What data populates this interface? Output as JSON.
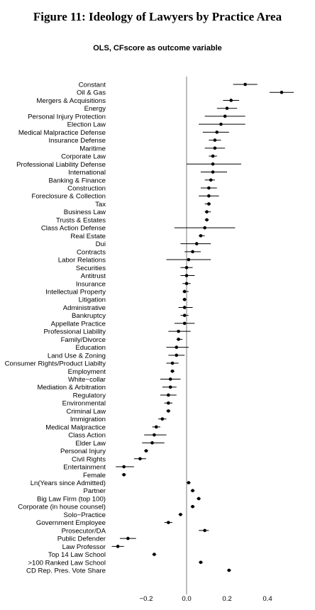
{
  "title": "Figure 11: Ideology of Lawyers by Practice Area",
  "subtitle": "OLS, CFscore as outcome variable",
  "chart_data": {
    "type": "scatter",
    "variant": "coefficient-plot",
    "title": "Figure 11: Ideology of Lawyers by Practice Area",
    "subtitle": "OLS, CFscore as outcome variable",
    "xlim": [
      -0.33,
      0.47
    ],
    "xticks": [
      -0.2,
      0.0,
      0.2,
      0.4
    ],
    "xtick_labels": [
      "−0.2",
      "0.0",
      "0.2",
      "0.4"
    ],
    "reference_line_x": 0,
    "grid": false,
    "terms": [
      {
        "label": "Constant",
        "estimate": 0.29,
        "lo": 0.23,
        "hi": 0.35
      },
      {
        "label": "Oil & Gas",
        "estimate": 0.47,
        "lo": 0.41,
        "hi": 0.53
      },
      {
        "label": "Mergers & Acquisitions",
        "estimate": 0.22,
        "lo": 0.18,
        "hi": 0.26
      },
      {
        "label": "Energy",
        "estimate": 0.2,
        "lo": 0.15,
        "hi": 0.25
      },
      {
        "label": "Personal Injury Protection",
        "estimate": 0.19,
        "lo": 0.09,
        "hi": 0.29
      },
      {
        "label": "Election Law",
        "estimate": 0.17,
        "lo": 0.06,
        "hi": 0.29
      },
      {
        "label": "Medical Malpractice Defense",
        "estimate": 0.15,
        "lo": 0.08,
        "hi": 0.21
      },
      {
        "label": "Insurance Defense",
        "estimate": 0.14,
        "lo": 0.11,
        "hi": 0.17
      },
      {
        "label": "Maritime",
        "estimate": 0.14,
        "lo": 0.09,
        "hi": 0.19
      },
      {
        "label": "Corporate Law",
        "estimate": 0.13,
        "lo": 0.11,
        "hi": 0.15
      },
      {
        "label": "Professional Liability Defense",
        "estimate": 0.13,
        "lo": 0.0,
        "hi": 0.27
      },
      {
        "label": "International",
        "estimate": 0.13,
        "lo": 0.07,
        "hi": 0.2
      },
      {
        "label": "Banking & Finance",
        "estimate": 0.12,
        "lo": 0.09,
        "hi": 0.14
      },
      {
        "label": "Construction",
        "estimate": 0.11,
        "lo": 0.07,
        "hi": 0.15
      },
      {
        "label": "Foreclosure & Collection",
        "estimate": 0.11,
        "lo": 0.06,
        "hi": 0.16
      },
      {
        "label": "Tax",
        "estimate": 0.11,
        "lo": 0.09,
        "hi": 0.12
      },
      {
        "label": "Business Law",
        "estimate": 0.1,
        "lo": 0.09,
        "hi": 0.12
      },
      {
        "label": "Trusts & Estates",
        "estimate": 0.1,
        "lo": 0.09,
        "hi": 0.11
      },
      {
        "label": "Class Action Defense",
        "estimate": 0.09,
        "lo": -0.06,
        "hi": 0.24
      },
      {
        "label": "Real Estate",
        "estimate": 0.07,
        "lo": 0.06,
        "hi": 0.09
      },
      {
        "label": "Dui",
        "estimate": 0.05,
        "lo": -0.03,
        "hi": 0.12
      },
      {
        "label": "Contracts",
        "estimate": 0.03,
        "lo": -0.01,
        "hi": 0.07
      },
      {
        "label": "Labor Relations",
        "estimate": 0.01,
        "lo": -0.1,
        "hi": 0.12
      },
      {
        "label": "Securities",
        "estimate": 0.0,
        "lo": -0.03,
        "hi": 0.03
      },
      {
        "label": "Antitrust",
        "estimate": 0.0,
        "lo": -0.03,
        "hi": 0.04
      },
      {
        "label": "Insurance",
        "estimate": 0.0,
        "lo": -0.02,
        "hi": 0.02
      },
      {
        "label": "Intellectual Property",
        "estimate": -0.01,
        "lo": -0.02,
        "hi": 0.01
      },
      {
        "label": "Litigation",
        "estimate": -0.01,
        "lo": -0.02,
        "hi": 0.0
      },
      {
        "label": "Administrative",
        "estimate": -0.01,
        "lo": -0.04,
        "hi": 0.03
      },
      {
        "label": "Bankruptcy",
        "estimate": -0.01,
        "lo": -0.03,
        "hi": 0.01
      },
      {
        "label": "Appellate Practice",
        "estimate": -0.01,
        "lo": -0.06,
        "hi": 0.04
      },
      {
        "label": "Professional Liability",
        "estimate": -0.04,
        "lo": -0.09,
        "hi": 0.02
      },
      {
        "label": "Family/Divorce",
        "estimate": -0.04,
        "lo": -0.05,
        "hi": -0.02
      },
      {
        "label": "Education",
        "estimate": -0.05,
        "lo": -0.1,
        "hi": 0.01
      },
      {
        "label": "Land Use & Zoning",
        "estimate": -0.05,
        "lo": -0.09,
        "hi": -0.01
      },
      {
        "label": "Consumer Rights/Product Liabilty",
        "estimate": -0.07,
        "lo": -0.1,
        "hi": -0.04
      },
      {
        "label": "Employment",
        "estimate": -0.07,
        "lo": -0.08,
        "hi": -0.06
      },
      {
        "label": "White−collar",
        "estimate": -0.08,
        "lo": -0.13,
        "hi": -0.03
      },
      {
        "label": "Mediation & Arbitration",
        "estimate": -0.08,
        "lo": -0.12,
        "hi": -0.05
      },
      {
        "label": "Regulatory",
        "estimate": -0.09,
        "lo": -0.13,
        "hi": -0.05
      },
      {
        "label": "Environmental",
        "estimate": -0.09,
        "lo": -0.11,
        "hi": -0.07
      },
      {
        "label": "Criminal Law",
        "estimate": -0.09,
        "lo": -0.1,
        "hi": -0.08
      },
      {
        "label": "Immigration",
        "estimate": -0.12,
        "lo": -0.14,
        "hi": -0.1
      },
      {
        "label": "Medical Malpractice",
        "estimate": -0.15,
        "lo": -0.17,
        "hi": -0.13
      },
      {
        "label": "Class Action",
        "estimate": -0.16,
        "lo": -0.21,
        "hi": -0.1
      },
      {
        "label": "Elder Law",
        "estimate": -0.17,
        "lo": -0.22,
        "hi": -0.11
      },
      {
        "label": "Personal Injury",
        "estimate": -0.2,
        "lo": -0.21,
        "hi": -0.19
      },
      {
        "label": "Civil Rights",
        "estimate": -0.23,
        "lo": -0.26,
        "hi": -0.2
      },
      {
        "label": "Entertainment",
        "estimate": -0.31,
        "lo": -0.35,
        "hi": -0.26
      },
      {
        "label": "Female",
        "estimate": -0.31,
        "lo": -0.32,
        "hi": -0.3
      },
      {
        "label": "Ln(Years since Admitted)",
        "estimate": 0.01,
        "lo": 0.0,
        "hi": 0.02
      },
      {
        "label": "Partner",
        "estimate": 0.03,
        "lo": 0.02,
        "hi": 0.04
      },
      {
        "label": "Big Law Firm (top 100)",
        "estimate": 0.06,
        "lo": 0.05,
        "hi": 0.07
      },
      {
        "label": "Corporate (in house counsel)",
        "estimate": 0.03,
        "lo": 0.02,
        "hi": 0.04
      },
      {
        "label": "Solo−Practice",
        "estimate": -0.03,
        "lo": -0.04,
        "hi": -0.02
      },
      {
        "label": "Government Employee",
        "estimate": -0.09,
        "lo": -0.11,
        "hi": -0.07
      },
      {
        "label": "Prosecutor/DA",
        "estimate": 0.09,
        "lo": 0.06,
        "hi": 0.11
      },
      {
        "label": "Public Defender",
        "estimate": -0.29,
        "lo": -0.33,
        "hi": -0.25
      },
      {
        "label": "Law Professor",
        "estimate": -0.34,
        "lo": -0.37,
        "hi": -0.31
      },
      {
        "label": "Top 14 Law School",
        "estimate": -0.16,
        "lo": -0.17,
        "hi": -0.15
      },
      {
        "label": ">100 Ranked Law School",
        "estimate": 0.07,
        "lo": 0.06,
        "hi": 0.08
      },
      {
        "label": "CD Rep. Pres. Vote Share",
        "estimate": 0.21,
        "lo": 0.2,
        "hi": 0.22
      }
    ]
  }
}
